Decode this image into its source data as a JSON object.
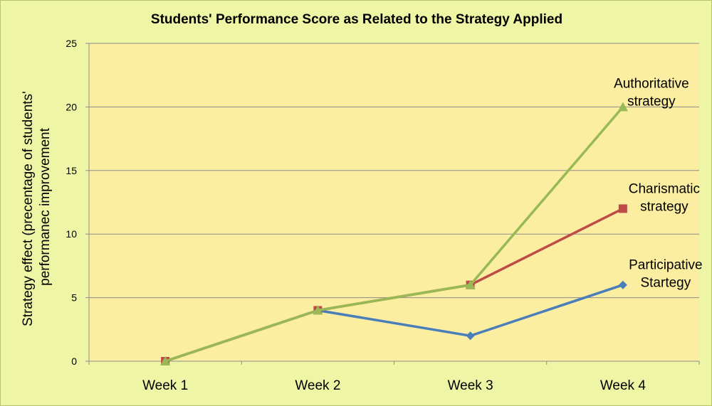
{
  "chart_data": {
    "type": "line",
    "title": "Students' Performance Score as Related to the Strategy Applied",
    "xlabel": "",
    "ylabel_lines": [
      "Strategy effect (precentage of students'",
      "performanec improvement"
    ],
    "categories": [
      "Week 1",
      "Week 2",
      "Week 3",
      "Week 4"
    ],
    "ylim": [
      0,
      25
    ],
    "yticks": [
      0,
      5,
      10,
      15,
      20,
      25
    ],
    "grid": true,
    "legend": "none (labels next to series ends)",
    "series": [
      {
        "name_lines": [
          "Participative",
          "Startegy"
        ],
        "values": [
          0,
          4,
          2,
          6
        ],
        "color": "#4a7ebb",
        "marker": "diamond"
      },
      {
        "name_lines": [
          "Charismatic",
          "strategy"
        ],
        "values": [
          0,
          4,
          6,
          12
        ],
        "color": "#be4b48",
        "marker": "square"
      },
      {
        "name_lines": [
          "Authoritative",
          "strategy"
        ],
        "values": [
          0,
          4,
          6,
          20
        ],
        "color": "#98b954",
        "marker": "triangle"
      }
    ],
    "plot_background": "#fbeea0",
    "page_background": "#eef6a6"
  }
}
